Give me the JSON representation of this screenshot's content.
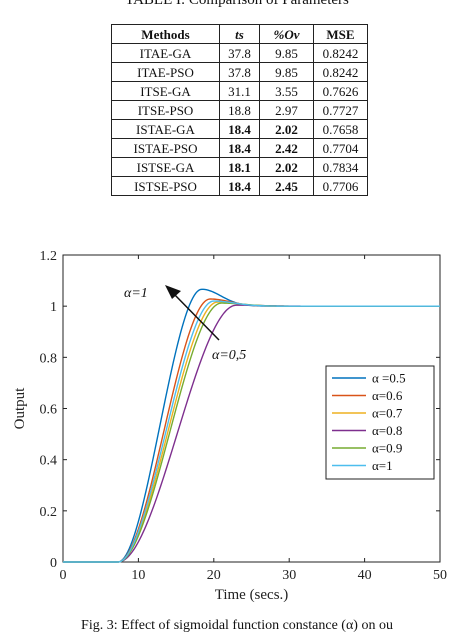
{
  "table": {
    "caption": "TABLE I: Comparison of Parameters",
    "headers": [
      "Methods",
      "ts",
      "%Ov",
      "MSE"
    ],
    "rows": [
      {
        "method": "ITAE-GA",
        "ts": "37.8",
        "ov": "9.85",
        "mse": "0.8242",
        "bold_ts": false,
        "bold_ov": false
      },
      {
        "method": "ITAE-PSO",
        "ts": "37.8",
        "ov": "9.85",
        "mse": "0.8242",
        "bold_ts": false,
        "bold_ov": false
      },
      {
        "method": "ITSE-GA",
        "ts": "31.1",
        "ov": "3.55",
        "mse": "0.7626",
        "bold_ts": false,
        "bold_ov": false
      },
      {
        "method": "ITSE-PSO",
        "ts": "18.8",
        "ov": "2.97",
        "mse": "0.7727",
        "bold_ts": false,
        "bold_ov": false
      },
      {
        "method": "ISTAE-GA",
        "ts": "18.4",
        "ov": "2.02",
        "mse": "0.7658",
        "bold_ts": true,
        "bold_ov": true
      },
      {
        "method": "ISTAE-PSO",
        "ts": "18.4",
        "ov": "2.42",
        "mse": "0.7704",
        "bold_ts": true,
        "bold_ov": true
      },
      {
        "method": "ISTSE-GA",
        "ts": "18.1",
        "ov": "2.02",
        "mse": "0.7834",
        "bold_ts": true,
        "bold_ov": true
      },
      {
        "method": "ISTSE-PSO",
        "ts": "18.4",
        "ov": "2.45",
        "mse": "0.7706",
        "bold_ts": true,
        "bold_ov": true
      }
    ]
  },
  "figure_caption": "Fig. 3: Effect of sigmoidal function constance (α) on ou",
  "chart_data": {
    "type": "line",
    "xlabel": "Time (secs.)",
    "ylabel": "Output",
    "xlim": [
      0,
      50
    ],
    "ylim": [
      0,
      1.2
    ],
    "xticks": [
      0,
      10,
      20,
      30,
      40,
      50
    ],
    "yticks": [
      0,
      0.2,
      0.4,
      0.6,
      0.8,
      1,
      1.2
    ],
    "grid": false,
    "legend_position": "right",
    "annotations": [
      {
        "text": "α=1"
      },
      {
        "text": "α=0,5"
      }
    ],
    "series": [
      {
        "name": "α =0.5",
        "color": "#0072BD",
        "t_start": 7.3,
        "overshoot": 0.066,
        "peak_time": 18.4,
        "settle_width": 3.6
      },
      {
        "name": "α=0.6",
        "color": "#D95319",
        "t_start": 7.3,
        "overshoot": 0.028,
        "peak_time": 19.5,
        "settle_width": 3.8
      },
      {
        "name": "α=0.7",
        "color": "#EDB120",
        "t_start": 7.3,
        "overshoot": 0.016,
        "peak_time": 20.5,
        "settle_width": 4.0
      },
      {
        "name": "α=0.8",
        "color": "#7E2F8E",
        "t_start": 7.3,
        "overshoot": 0.004,
        "peak_time": 23.0,
        "settle_width": 4.6
      },
      {
        "name": "α=0.9",
        "color": "#77AC30",
        "t_start": 7.3,
        "overshoot": 0.012,
        "peak_time": 21.0,
        "settle_width": 4.2
      },
      {
        "name": "α=1",
        "color": "#4DBEEE",
        "t_start": 7.3,
        "overshoot": 0.02,
        "peak_time": 20.0,
        "settle_width": 3.9
      }
    ]
  }
}
